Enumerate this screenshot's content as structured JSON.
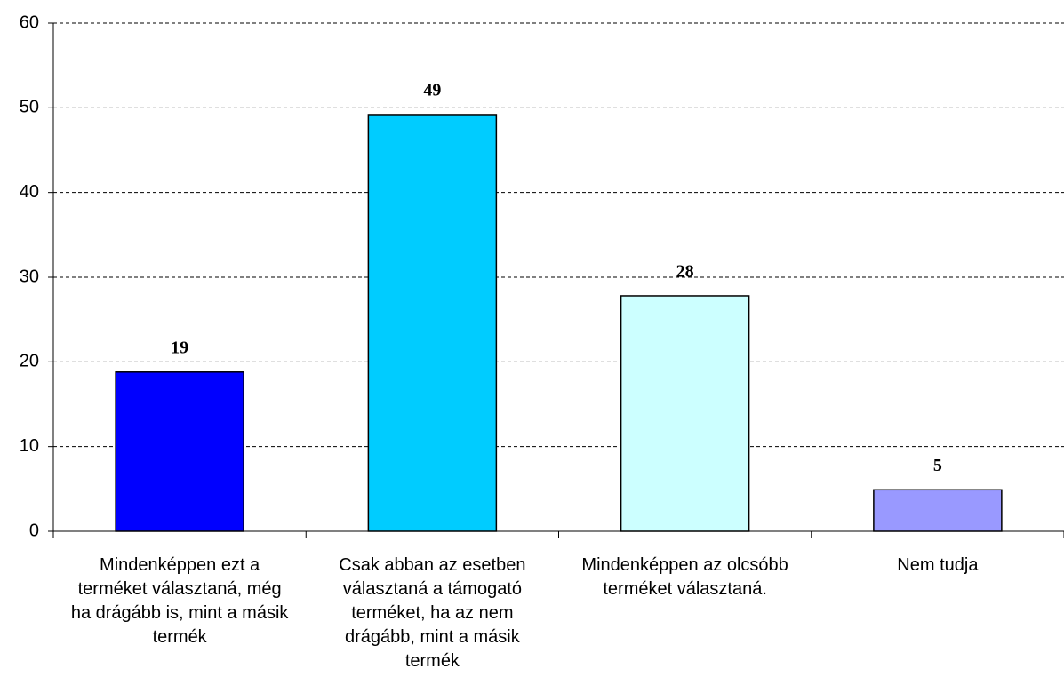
{
  "chart_data": {
    "type": "bar",
    "categories": [
      "Mindenképpen ezt a terméket választaná, még ha drágább is, mint a másik termék",
      "Csak abban az esetben választaná a támogató terméket, ha az nem drágább, mint a másik termék",
      "Mindenképpen az olcsóbb terméket választaná.",
      "Nem tudja"
    ],
    "values": [
      18.8,
      49.2,
      27.8,
      4.9
    ],
    "value_labels": [
      "19",
      "49",
      "28",
      "5"
    ],
    "colors": [
      "#0000ff",
      "#00ccff",
      "#ccffff",
      "#9999ff"
    ],
    "ylim": [
      0,
      60
    ],
    "yticks": [
      0,
      10,
      20,
      30,
      40,
      50,
      60
    ],
    "grid": true
  }
}
